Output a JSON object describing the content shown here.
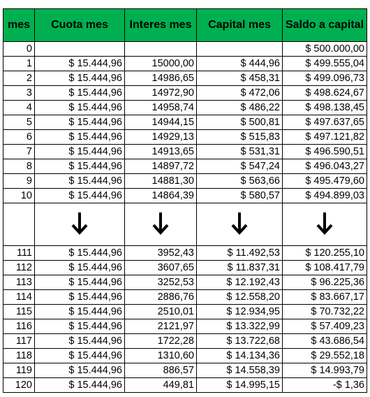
{
  "headers": [
    "mes",
    "Cuota mes",
    "Interes mes",
    "Capital mes",
    "Saldo a capital"
  ],
  "rows_top": [
    [
      "0",
      "",
      "",
      "",
      "$ 500.000,00"
    ],
    [
      "1",
      "$ 15.444,96",
      "15000,00",
      "$ 444,96",
      "$ 499.555,04"
    ],
    [
      "2",
      "$ 15.444,96",
      "14986,65",
      "$ 458,31",
      "$ 499.096,73"
    ],
    [
      "3",
      "$ 15.444,96",
      "14972,90",
      "$ 472,06",
      "$ 498.624,67"
    ],
    [
      "4",
      "$ 15.444,96",
      "14958,74",
      "$ 486,22",
      "$ 498.138,45"
    ],
    [
      "5",
      "$ 15.444,96",
      "14944,15",
      "$ 500,81",
      "$ 497.637,65"
    ],
    [
      "6",
      "$ 15.444,96",
      "14929,13",
      "$ 515,83",
      "$ 497.121,82"
    ],
    [
      "7",
      "$ 15.444,96",
      "14913,65",
      "$ 531,31",
      "$ 496.590,51"
    ],
    [
      "8",
      "$ 15.444,96",
      "14897,72",
      "$ 547,24",
      "$ 496.043,27"
    ],
    [
      "9",
      "$ 15.444,96",
      "14881,30",
      "$ 563,66",
      "$ 495.479,60"
    ],
    [
      "10",
      "$ 15.444,96",
      "14864,39",
      "$ 580,57",
      "$ 494.899,03"
    ]
  ],
  "rows_bottom": [
    [
      "111",
      "$ 15.444,96",
      "3952,43",
      "$ 11.492,53",
      "$ 120.255,10"
    ],
    [
      "112",
      "$ 15.444,96",
      "3607,65",
      "$ 11.837,31",
      "$ 108.417,79"
    ],
    [
      "113",
      "$ 15.444,96",
      "3252,53",
      "$ 12.192,43",
      "$ 96.225,36"
    ],
    [
      "114",
      "$ 15.444,96",
      "2886,76",
      "$ 12.558,20",
      "$ 83.667,17"
    ],
    [
      "115",
      "$ 15.444,96",
      "2510,01",
      "$ 12.934,95",
      "$ 70.732,22"
    ],
    [
      "116",
      "$ 15.444,96",
      "2121,97",
      "$ 13.322,99",
      "$ 57.409,23"
    ],
    [
      "117",
      "$ 15.444,96",
      "1722,28",
      "$ 13.722,68",
      "$ 43.686,54"
    ],
    [
      "118",
      "$ 15.444,96",
      "1310,60",
      "$ 14.134,36",
      "$ 29.552,18"
    ],
    [
      "119",
      "$ 15.444,96",
      "886,57",
      "$ 14.558,39",
      "$ 14.993,79"
    ],
    [
      "120",
      "$ 15.444,96",
      "449,81",
      "$ 14.995,15",
      "-$ 1,36"
    ]
  ],
  "gap_icon": "arrow-down-icon",
  "colors": {
    "header_bg": "#00b050",
    "border": "#000000"
  }
}
